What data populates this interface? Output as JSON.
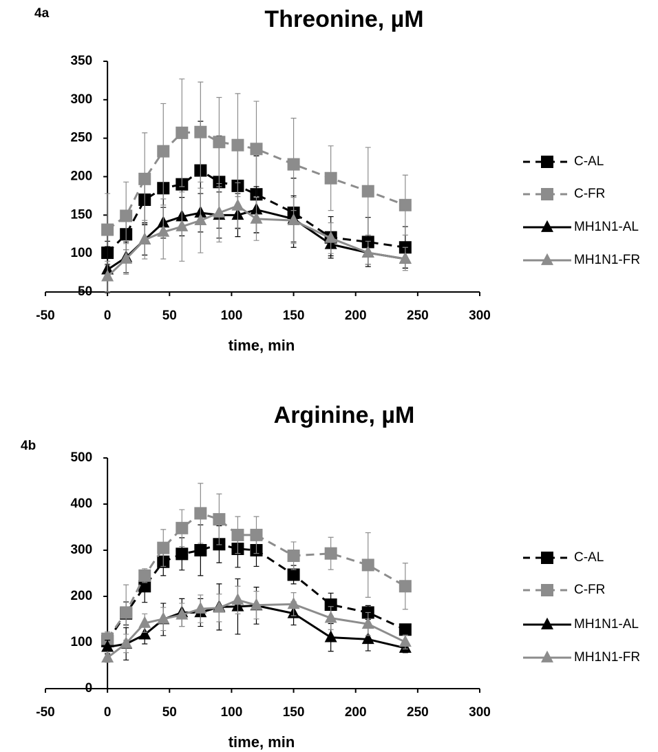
{
  "chart_data": [
    {
      "type": "line",
      "panel_label": "4a",
      "title": "Threonine, µM",
      "x_label": "time, min",
      "x": [
        0,
        15,
        30,
        45,
        60,
        75,
        90,
        105,
        120,
        150,
        180,
        210,
        240
      ],
      "xlim": [
        -50,
        300
      ],
      "xticks": [
        -50,
        0,
        50,
        100,
        150,
        200,
        250,
        300
      ],
      "ylim": [
        50,
        350
      ],
      "yticks": [
        50,
        100,
        150,
        200,
        250,
        300,
        350
      ],
      "grid": false,
      "legend": "right",
      "series": [
        {
          "name": "C-AL",
          "color": "#000000",
          "line_style": "dashed",
          "marker": "square",
          "values": [
            101,
            125,
            170,
            185,
            190,
            208,
            193,
            188,
            177,
            153,
            121,
            115,
            108
          ],
          "errors": [
            15,
            20,
            30,
            50,
            60,
            64,
            60,
            55,
            50,
            45,
            27,
            32,
            27
          ]
        },
        {
          "name": "C-FR",
          "color": "#8c8c8c",
          "line_style": "dashed",
          "marker": "square",
          "values": [
            131,
            149,
            197,
            233,
            257,
            258,
            245,
            241,
            236,
            216,
            198,
            181,
            163
          ],
          "errors": [
            47,
            44,
            60,
            62,
            70,
            65,
            58,
            67,
            62,
            60,
            42,
            57,
            39
          ]
        },
        {
          "name": "MH1N1-AL",
          "color": "#000000",
          "line_style": "solid",
          "marker": "triangle",
          "values": [
            79,
            95,
            118,
            140,
            148,
            153,
            150,
            150,
            157,
            145,
            112,
            101,
            93
          ],
          "errors": [
            30,
            20,
            20,
            20,
            25,
            25,
            30,
            28,
            30,
            30,
            15,
            15,
            12
          ]
        },
        {
          "name": "MH1N1-FR",
          "color": "#8c8c8c",
          "line_style": "solid",
          "marker": "triangle",
          "values": [
            70,
            93,
            118,
            128,
            135,
            143,
            153,
            162,
            145,
            143,
            120,
            101,
            93
          ],
          "errors": [
            20,
            20,
            25,
            35,
            45,
            42,
            38,
            30,
            28,
            30,
            20,
            15,
            15
          ]
        }
      ]
    },
    {
      "type": "line",
      "panel_label": "4b",
      "title": "Arginine, µM",
      "x_label": "time, min",
      "x": [
        0,
        15,
        30,
        45,
        60,
        75,
        90,
        105,
        120,
        150,
        180,
        210,
        240
      ],
      "xlim": [
        -50,
        300
      ],
      "xticks": [
        -50,
        0,
        50,
        100,
        150,
        200,
        250,
        300
      ],
      "ylim": [
        0,
        500
      ],
      "yticks": [
        0,
        100,
        200,
        300,
        400,
        500
      ],
      "grid": false,
      "legend": "right",
      "series": [
        {
          "name": "C-AL",
          "color": "#000000",
          "line_style": "dashed",
          "marker": "square",
          "values": [
            103,
            163,
            222,
            275,
            292,
            300,
            313,
            303,
            300,
            247,
            182,
            165,
            128
          ],
          "errors": [
            10,
            25,
            35,
            30,
            35,
            55,
            40,
            40,
            35,
            20,
            25,
            15,
            10
          ]
        },
        {
          "name": "C-FR",
          "color": "#8c8c8c",
          "line_style": "dashed",
          "marker": "square",
          "values": [
            108,
            165,
            245,
            305,
            348,
            380,
            367,
            333,
            333,
            288,
            293,
            268,
            222
          ],
          "errors": [
            15,
            60,
            15,
            40,
            40,
            65,
            55,
            40,
            40,
            30,
            35,
            70,
            50
          ]
        },
        {
          "name": "MH1N1-AL",
          "color": "#000000",
          "line_style": "solid",
          "marker": "triangle",
          "values": [
            90,
            97,
            117,
            150,
            165,
            165,
            177,
            178,
            180,
            163,
            111,
            107,
            88
          ],
          "errors": [
            15,
            35,
            20,
            35,
            30,
            30,
            50,
            60,
            40,
            25,
            30,
            25,
            10
          ]
        },
        {
          "name": "MH1N1-FR",
          "color": "#8c8c8c",
          "line_style": "solid",
          "marker": "triangle",
          "values": [
            67,
            98,
            142,
            151,
            160,
            173,
            175,
            192,
            181,
            183,
            153,
            140,
            101
          ],
          "errors": [
            10,
            20,
            20,
            25,
            25,
            30,
            30,
            30,
            30,
            25,
            25,
            25,
            15
          ]
        }
      ]
    }
  ]
}
